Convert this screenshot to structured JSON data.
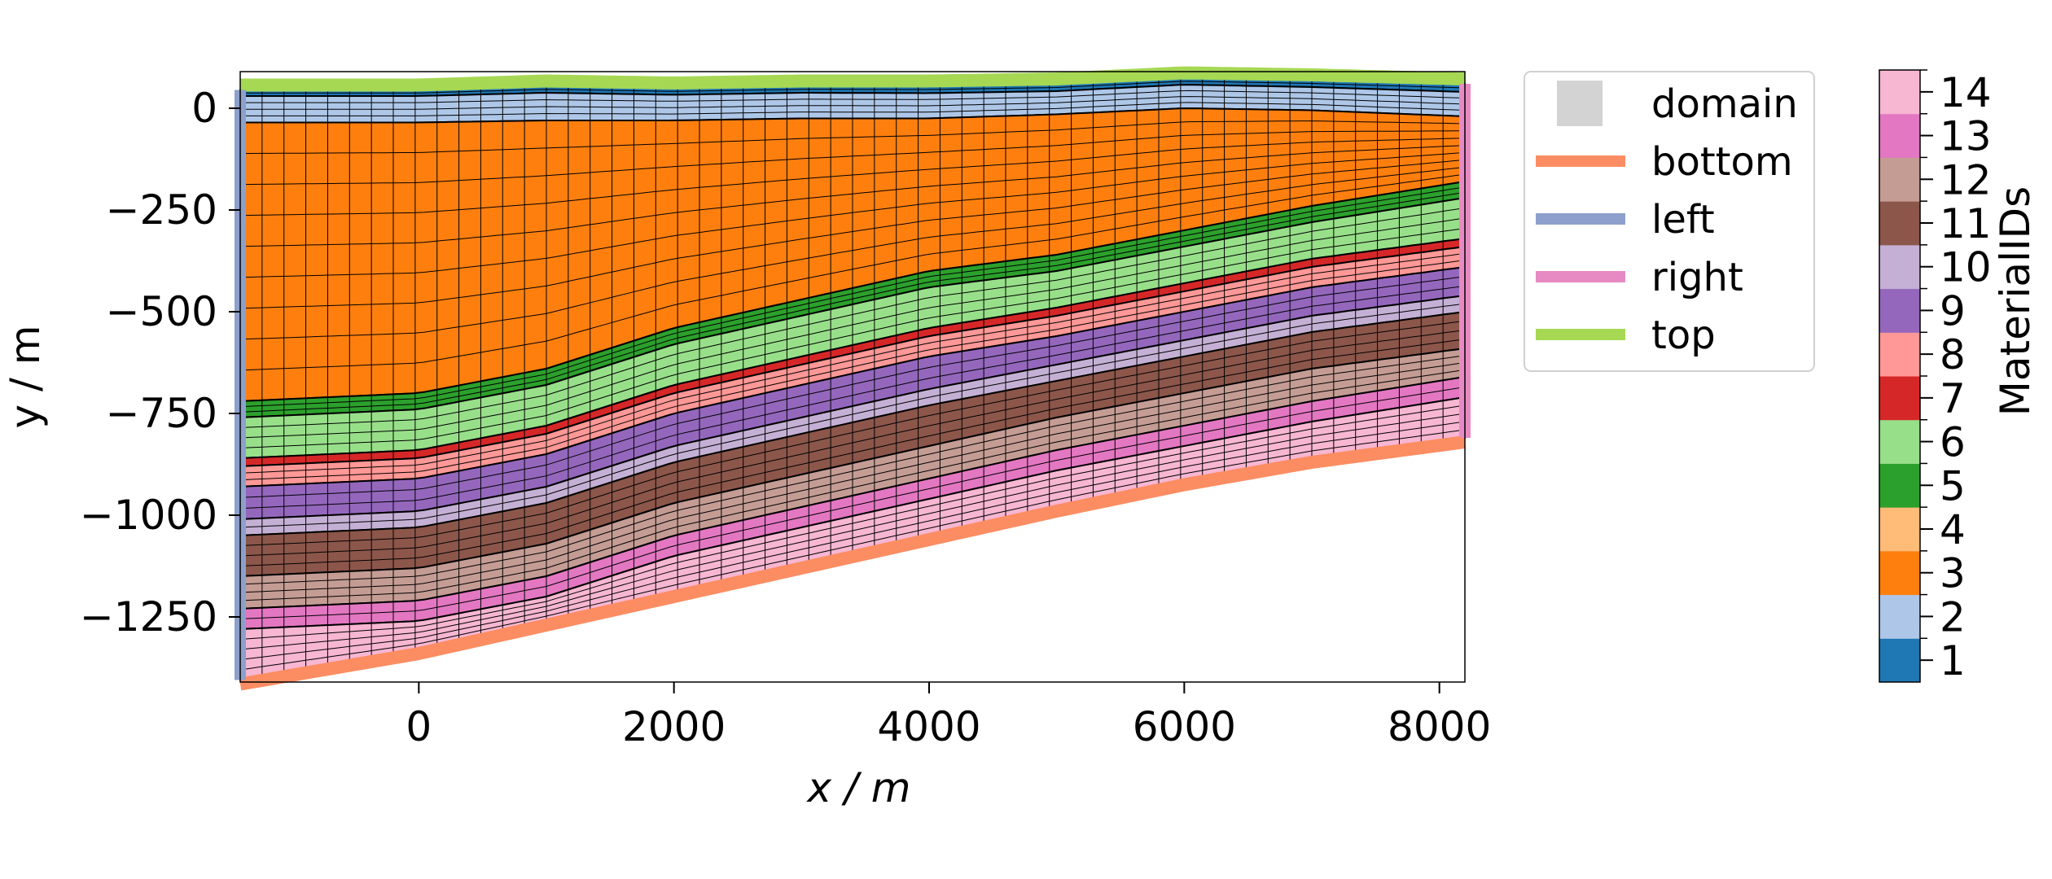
{
  "chart_data": {
    "type": "mesh",
    "xlabel": "x / m",
    "ylabel": "y / m",
    "xlim": [
      -1400,
      8200
    ],
    "ylim": [
      -1410,
      90
    ],
    "xticks": [
      0,
      2000,
      4000,
      6000,
      8000
    ],
    "xtick_labels": [
      "0",
      "2000",
      "4000",
      "6000",
      "8000"
    ],
    "yticks": [
      0,
      -250,
      -500,
      -750,
      -1000,
      -1250
    ],
    "ytick_labels": [
      "0",
      "−250",
      "−500",
      "−750",
      "−1000",
      "−1250"
    ],
    "boundary_x": [
      -1400,
      0,
      1000,
      2000,
      3000,
      4000,
      5000,
      6000,
      7000,
      8200
    ],
    "layers": [
      {
        "material": 1,
        "top": [
          45,
          45,
          55,
          50,
          55,
          55,
          60,
          75,
          70,
          60
        ],
        "bottom": [
          30,
          30,
          38,
          33,
          38,
          37,
          42,
          58,
          52,
          40
        ],
        "rows": 2
      },
      {
        "material": 2,
        "top": [
          30,
          30,
          38,
          33,
          38,
          37,
          42,
          58,
          52,
          40
        ],
        "bottom": [
          -35,
          -35,
          -30,
          -30,
          -25,
          -25,
          -15,
          0,
          -5,
          -20
        ],
        "rows": 4
      },
      {
        "material": 3,
        "top": [
          -35,
          -35,
          -30,
          -30,
          -25,
          -25,
          -15,
          0,
          -5,
          -20
        ],
        "bottom": [
          -720,
          -700,
          -640,
          -540,
          -470,
          -400,
          -360,
          -300,
          -240,
          -180
        ],
        "rows": 9
      },
      {
        "material": 5,
        "top": [
          -720,
          -700,
          -640,
          -540,
          -470,
          -400,
          -360,
          -300,
          -240,
          -180
        ],
        "bottom": [
          -760,
          -740,
          -680,
          -580,
          -510,
          -440,
          -400,
          -340,
          -280,
          -220
        ],
        "rows": 3
      },
      {
        "material": 6,
        "top": [
          -760,
          -740,
          -680,
          -580,
          -510,
          -440,
          -400,
          -340,
          -280,
          -220
        ],
        "bottom": [
          -860,
          -840,
          -780,
          -680,
          -610,
          -540,
          -490,
          -430,
          -370,
          -320
        ],
        "rows": 4
      },
      {
        "material": 7,
        "top": [
          -860,
          -840,
          -780,
          -680,
          -610,
          -540,
          -490,
          -430,
          -370,
          -320
        ],
        "bottom": [
          -880,
          -860,
          -800,
          -700,
          -630,
          -560,
          -510,
          -450,
          -390,
          -340
        ],
        "rows": 1
      },
      {
        "material": 8,
        "top": [
          -880,
          -860,
          -800,
          -700,
          -630,
          -560,
          -510,
          -450,
          -390,
          -340
        ],
        "bottom": [
          -930,
          -910,
          -850,
          -750,
          -680,
          -610,
          -560,
          -500,
          -440,
          -390
        ],
        "rows": 3
      },
      {
        "material": 9,
        "top": [
          -930,
          -910,
          -850,
          -750,
          -680,
          -610,
          -560,
          -500,
          -440,
          -390
        ],
        "bottom": [
          -1010,
          -990,
          -930,
          -830,
          -760,
          -690,
          -630,
          -570,
          -510,
          -460
        ],
        "rows": 3
      },
      {
        "material": 10,
        "top": [
          -1010,
          -990,
          -930,
          -830,
          -760,
          -690,
          -630,
          -570,
          -510,
          -460
        ],
        "bottom": [
          -1050,
          -1030,
          -970,
          -870,
          -800,
          -730,
          -670,
          -610,
          -550,
          -500
        ],
        "rows": 2
      },
      {
        "material": 11,
        "top": [
          -1050,
          -1030,
          -970,
          -870,
          -800,
          -730,
          -670,
          -610,
          -550,
          -500
        ],
        "bottom": [
          -1150,
          -1130,
          -1070,
          -970,
          -900,
          -830,
          -760,
          -700,
          -640,
          -590
        ],
        "rows": 4
      },
      {
        "material": 12,
        "top": [
          -1150,
          -1130,
          -1070,
          -970,
          -900,
          -830,
          -760,
          -700,
          -640,
          -590
        ],
        "bottom": [
          -1230,
          -1210,
          -1150,
          -1050,
          -980,
          -910,
          -840,
          -780,
          -720,
          -660
        ],
        "rows": 4
      },
      {
        "material": 13,
        "top": [
          -1230,
          -1210,
          -1150,
          -1050,
          -980,
          -910,
          -840,
          -780,
          -720,
          -660
        ],
        "bottom": [
          -1280,
          -1260,
          -1200,
          -1100,
          -1030,
          -960,
          -890,
          -830,
          -770,
          -710
        ],
        "rows": 2
      },
      {
        "material": 14,
        "top": [
          -1280,
          -1260,
          -1200,
          -1100,
          -1030,
          -960,
          -890,
          -830,
          -770,
          -710
        ],
        "bottom": [
          -1405,
          -1330,
          -1260,
          -1190,
          -1120,
          -1050,
          -980,
          -915,
          -860,
          -810
        ],
        "rows": 5
      }
    ],
    "mesh_columns": 56,
    "boundaries": {
      "top": {
        "color": "#a6d854"
      },
      "bottom": {
        "color": "#fc8d62"
      },
      "left": {
        "color": "#8da0cb"
      },
      "right": {
        "color": "#e78ac3"
      }
    },
    "legend": {
      "position": "upper right, outside axes",
      "entries": [
        {
          "label": "domain",
          "color": "#d3d3d3",
          "kind": "patch"
        },
        {
          "label": "bottom",
          "color": "#fc8d62",
          "kind": "line"
        },
        {
          "label": "left",
          "color": "#8da0cb",
          "kind": "line"
        },
        {
          "label": "right",
          "color": "#e78ac3",
          "kind": "line"
        },
        {
          "label": "top",
          "color": "#a6d854",
          "kind": "line"
        }
      ]
    },
    "colorbar": {
      "label": "MaterialIDs",
      "ids": [
        1,
        2,
        3,
        4,
        5,
        6,
        7,
        8,
        9,
        10,
        11,
        12,
        13,
        14
      ],
      "colors": [
        "#1f77b4",
        "#aec7e8",
        "#ff7f0e",
        "#ffbb78",
        "#2ca02c",
        "#98df8a",
        "#d62728",
        "#ff9896",
        "#9467bd",
        "#c5b0d5",
        "#8c564b",
        "#c49c94",
        "#e377c2",
        "#f7b6d2"
      ]
    }
  }
}
